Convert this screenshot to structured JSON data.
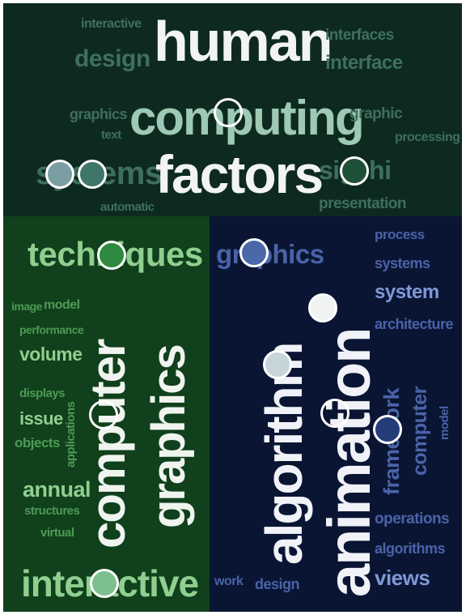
{
  "colors": {
    "top_panel_bg": "#0e2a20",
    "left_panel_bg": "#10401c",
    "right_panel_bg": "#0a1533",
    "top_big_word": "#f2f4f2",
    "top_mid_word": "#9ec9b4",
    "top_small_word": "#3f6f5d",
    "left_big_word": "#f0f4ef",
    "left_mid_word": "#8fcf8f",
    "left_small_word": "#4e9a55",
    "right_big_word": "#f0f2f8",
    "right_mid_word": "#7f98d6",
    "right_small_word": "#4a63a8"
  },
  "top_cluster": {
    "words": [
      "human",
      "computing",
      "factors",
      "design",
      "interactive",
      "interfaces",
      "interface",
      "graphics",
      "text",
      "graphic",
      "processing",
      "systems",
      "sigchi",
      "automatic",
      "presentation"
    ]
  },
  "left_cluster": {
    "words": [
      "techniques",
      "computer",
      "graphics",
      "image",
      "model",
      "performance",
      "volume",
      "displays",
      "issue",
      "objects",
      "applications",
      "annual",
      "structures",
      "virtual",
      "interactive"
    ]
  },
  "right_cluster": {
    "words": [
      "graphics",
      "algorithm",
      "animation",
      "process",
      "systems",
      "system",
      "architecture",
      "framework",
      "computer",
      "model",
      "operations",
      "algorithms",
      "work",
      "design",
      "views"
    ]
  },
  "markers": [
    {
      "color": "#ffffff",
      "fill": "transparent"
    },
    {
      "color": "#ffffff",
      "fill": "#7a9ea2"
    },
    {
      "color": "#ffffff",
      "fill": "#3e7669"
    },
    {
      "color": "#ffffff",
      "fill": "#1e5038"
    },
    {
      "color": "#ffffff",
      "fill": "#2e8a40"
    },
    {
      "color": "#ffffff",
      "fill": "#4a68aa"
    },
    {
      "color": "#ffffff",
      "fill": "#f0f3f2"
    },
    {
      "color": "#ffffff",
      "fill": "#c6d5da"
    },
    {
      "color": "#ffffff",
      "fill": "transparent"
    },
    {
      "color": "#ffffff",
      "fill": "transparent"
    },
    {
      "color": "#ffffff",
      "fill": "#243d78"
    },
    {
      "color": "#ffffff",
      "fill": "#7dc08f"
    }
  ]
}
